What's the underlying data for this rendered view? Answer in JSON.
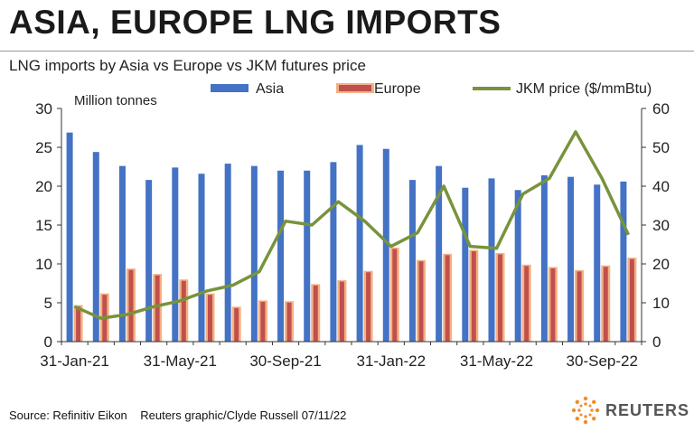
{
  "title": "ASIA, EUROPE LNG IMPORTS",
  "subtitle": "LNG imports by Asia vs Europe vs JKM futures price",
  "footer": {
    "source": "Source: Refinitiv Eikon",
    "credit": "Reuters graphic/Clyde Russell 07/11/22",
    "brand": "REUTERS"
  },
  "colors": {
    "asia": "#4472c4",
    "europe_fill": "#c0504d",
    "europe_border": "#f4b183",
    "jkm": "#77933c"
  },
  "chart_data": {
    "type": "bar",
    "categories": [
      "Jan-21",
      "Feb-21",
      "Mar-21",
      "Apr-21",
      "May-21",
      "Jun-21",
      "Jul-21",
      "Aug-21",
      "Sep-21",
      "Oct-21",
      "Nov-21",
      "Dec-21",
      "Jan-22",
      "Feb-22",
      "Mar-22",
      "Apr-22",
      "May-22",
      "Jun-22",
      "Jul-22",
      "Aug-22",
      "Sep-22",
      "Oct-22"
    ],
    "tick_labels": [
      "31-Jan-21",
      "31-May-21",
      "30-Sep-21",
      "31-Jan-22",
      "31-May-22",
      "30-Sep-22"
    ],
    "tick_indices": [
      0,
      4,
      8,
      12,
      16,
      20
    ],
    "left_axis_label": "Million tonnes",
    "ylim_left": [
      0,
      30
    ],
    "yticks_left": [
      "0",
      "5",
      "10",
      "15",
      "20",
      "25",
      "30"
    ],
    "ylim_right": [
      0,
      60
    ],
    "yticks_right": [
      "0",
      "10",
      "20",
      "30",
      "40",
      "50",
      "60"
    ],
    "legend_position": "top",
    "grid": false,
    "series": [
      {
        "name": "Asia",
        "kind": "bar",
        "axis": "left",
        "values": [
          26.9,
          24.4,
          22.6,
          20.8,
          22.4,
          21.6,
          22.9,
          22.6,
          22.0,
          22.0,
          23.1,
          25.3,
          24.8,
          20.8,
          22.6,
          19.8,
          21.0,
          19.5,
          21.4,
          21.2,
          20.2,
          20.6
        ]
      },
      {
        "name": "Europe",
        "kind": "bar",
        "axis": "left",
        "values": [
          4.7,
          6.2,
          9.4,
          8.7,
          8.0,
          6.2,
          4.5,
          5.3,
          5.2,
          7.4,
          7.9,
          9.1,
          12.1,
          10.5,
          11.3,
          11.8,
          11.4,
          9.9,
          9.6,
          9.2,
          9.8,
          10.8
        ]
      },
      {
        "name": "JKM price ($/mmBtu)",
        "kind": "line",
        "axis": "right",
        "values": [
          9,
          6,
          7,
          9,
          10.5,
          13,
          14.5,
          18,
          31,
          30,
          36,
          31,
          24.5,
          28,
          40,
          24.5,
          24,
          38,
          42,
          54,
          42,
          27.5
        ]
      }
    ]
  }
}
